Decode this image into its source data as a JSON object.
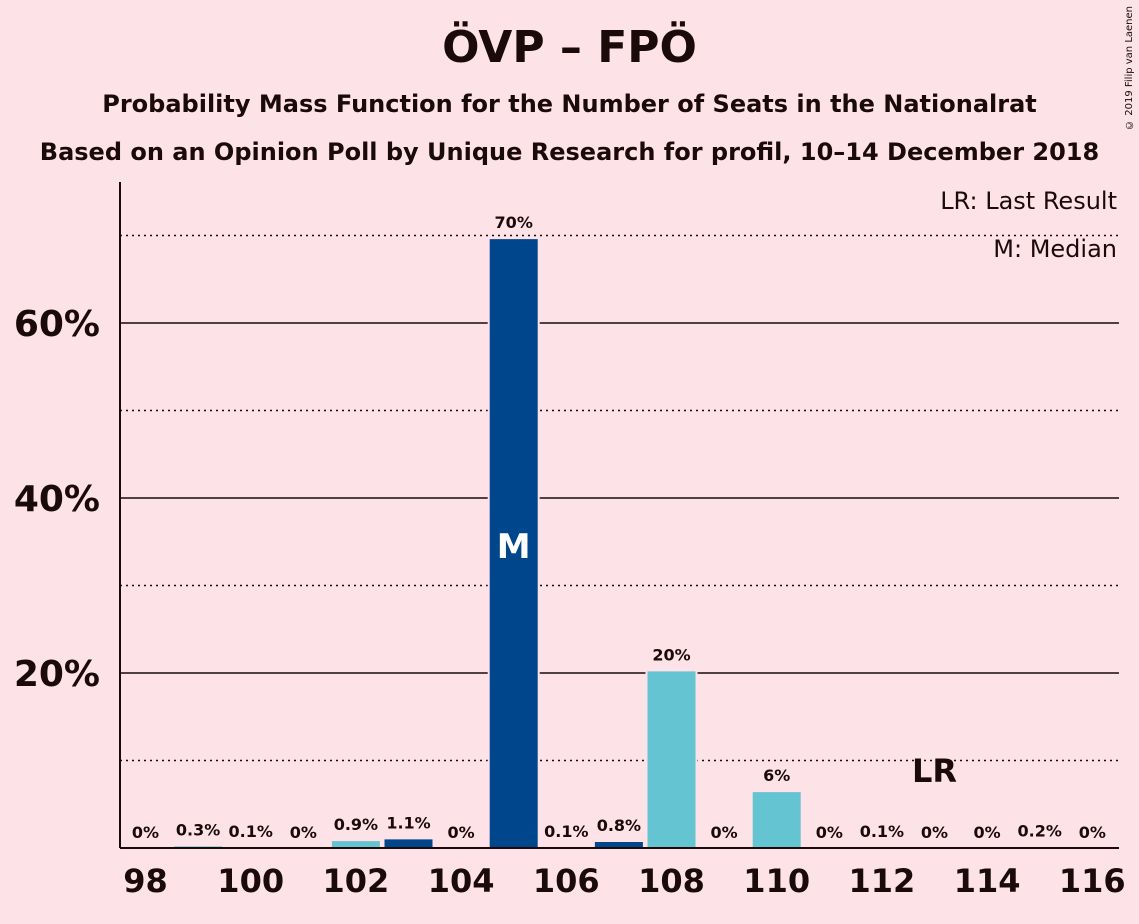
{
  "title": "ÖVP – FPÖ",
  "subtitle_1": "Probability Mass Function for the Number of Seats in the Nationalrat",
  "subtitle_2": "Based on an Opinion Poll by Unique Research for profil, 10–14 December 2018",
  "copyright": "© 2019 Filip van Laenen",
  "legend": {
    "last_result": "LR: Last Result",
    "median": "M: Median"
  },
  "colors": {
    "median_bar": "#00468c",
    "bar": "#64c4d2",
    "background": "#fde3e7"
  },
  "chart_data": {
    "type": "bar",
    "x": [
      98,
      99,
      100,
      101,
      102,
      103,
      104,
      105,
      106,
      107,
      108,
      109,
      110,
      111,
      112,
      113,
      114,
      115,
      116
    ],
    "values": [
      0,
      0.3,
      0.1,
      0,
      0.9,
      1.1,
      0,
      69.7,
      0.1,
      0.8,
      20.3,
      0,
      6.5,
      0,
      0.1,
      0,
      0,
      0.2,
      0
    ],
    "labels": [
      "0%",
      "0.3%",
      "0.1%",
      "0%",
      "0.9%",
      "1.1%",
      "0%",
      "70%",
      "0.1%",
      "0.8%",
      "20%",
      "0%",
      "6%",
      "0%",
      "0.1%",
      "0%",
      "0%",
      "0.2%",
      "0%"
    ],
    "x_tick_labels": [
      "98",
      "100",
      "102",
      "104",
      "106",
      "108",
      "110",
      "112",
      "114",
      "116"
    ],
    "y_tick_labels": [
      "20%",
      "40%",
      "60%"
    ],
    "ylim": [
      0,
      76
    ],
    "median": 105,
    "median_label": "M",
    "last_result": 113,
    "last_result_label": "LR",
    "dark_bars": [
      103,
      105,
      107
    ],
    "legend_position": "top-right"
  }
}
